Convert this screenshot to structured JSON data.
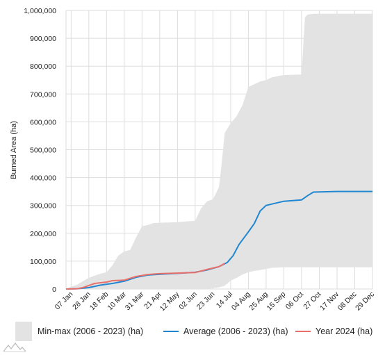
{
  "chart_data": {
    "type": "area",
    "xlabel": "",
    "ylabel": "Burned Area (ha)",
    "xlim": [
      "2024-01-01",
      "2024-12-29"
    ],
    "ylim": [
      0,
      1000000
    ],
    "grid": true,
    "legend_position": "bottom",
    "x_ticks": [
      "07 Jan",
      "28 Jan",
      "18 Feb",
      "10 Mar",
      "31 Mar",
      "21 Apr",
      "12 May",
      "02 Jun",
      "23 Jun",
      "14 Jul",
      "04 Aug",
      "25 Aug",
      "15 Sep",
      "06 Oct",
      "27 Oct",
      "17 Nov",
      "08 Dec",
      "29 Dec"
    ],
    "x_tick_dates": [
      "2024-01-07",
      "2024-01-28",
      "2024-02-18",
      "2024-03-10",
      "2024-03-31",
      "2024-04-21",
      "2024-05-12",
      "2024-06-02",
      "2024-06-23",
      "2024-07-14",
      "2024-08-04",
      "2024-08-25",
      "2024-09-15",
      "2024-10-06",
      "2024-10-27",
      "2024-11-17",
      "2024-12-08",
      "2024-12-29"
    ],
    "y_ticks": [
      0,
      100000,
      200000,
      300000,
      400000,
      500000,
      600000,
      700000,
      800000,
      900000,
      1000000
    ],
    "y_tick_labels": [
      "0",
      "100,000",
      "200,000",
      "300,000",
      "400,000",
      "500,000",
      "600,000",
      "700,000",
      "800,000",
      "900,000",
      "1,000,000"
    ],
    "series": [
      {
        "name": "Min-max (2006 - 2023) (ha)",
        "kind": "band",
        "color": "#e3e3e3",
        "x": [
          "2024-01-01",
          "2024-01-07",
          "2024-01-14",
          "2024-01-21",
          "2024-01-28",
          "2024-02-04",
          "2024-02-11",
          "2024-02-18",
          "2024-02-25",
          "2024-03-03",
          "2024-03-10",
          "2024-03-17",
          "2024-03-24",
          "2024-03-31",
          "2024-04-07",
          "2024-04-14",
          "2024-04-21",
          "2024-05-12",
          "2024-06-02",
          "2024-06-09",
          "2024-06-16",
          "2024-06-23",
          "2024-06-30",
          "2024-07-03",
          "2024-07-07",
          "2024-07-14",
          "2024-07-21",
          "2024-07-28",
          "2024-08-04",
          "2024-08-11",
          "2024-08-18",
          "2024-08-25",
          "2024-09-01",
          "2024-09-15",
          "2024-10-06",
          "2024-10-10",
          "2024-10-13",
          "2024-10-20",
          "2024-11-01",
          "2024-12-29"
        ],
        "max": [
          0,
          8000,
          15000,
          28000,
          40000,
          48000,
          55000,
          60000,
          85000,
          120000,
          135000,
          140000,
          185000,
          225000,
          230000,
          237000,
          238000,
          240000,
          245000,
          290000,
          315000,
          322000,
          365000,
          440000,
          560000,
          595000,
          620000,
          660000,
          725000,
          735000,
          745000,
          750000,
          760000,
          768000,
          770000,
          975000,
          985000,
          988000,
          988000,
          988000
        ],
        "min": [
          0,
          0,
          0,
          0,
          0,
          0,
          0,
          0,
          0,
          0,
          0,
          0,
          0,
          0,
          0,
          0,
          0,
          0,
          0,
          0,
          0,
          3000,
          6000,
          8000,
          12000,
          30000,
          40000,
          52000,
          60000,
          65000,
          68000,
          72000,
          76000,
          78000,
          78000,
          78000,
          78000,
          78000,
          78000,
          78000
        ]
      },
      {
        "name": "Average (2006 - 2023) (ha)",
        "kind": "line",
        "color": "#1f86d1",
        "x": [
          "2024-01-01",
          "2024-01-14",
          "2024-01-28",
          "2024-02-11",
          "2024-02-25",
          "2024-03-10",
          "2024-03-24",
          "2024-04-07",
          "2024-04-21",
          "2024-05-12",
          "2024-06-02",
          "2024-06-16",
          "2024-06-30",
          "2024-07-10",
          "2024-07-17",
          "2024-07-24",
          "2024-08-04",
          "2024-08-11",
          "2024-08-18",
          "2024-08-25",
          "2024-09-01",
          "2024-09-15",
          "2024-10-06",
          "2024-10-13",
          "2024-10-20",
          "2024-11-17",
          "2024-12-29"
        ],
        "values": [
          0,
          1000,
          5000,
          14000,
          20000,
          28000,
          42000,
          50000,
          53000,
          56000,
          60000,
          68000,
          80000,
          95000,
          120000,
          160000,
          205000,
          235000,
          280000,
          300000,
          305000,
          315000,
          320000,
          335000,
          348000,
          350000,
          350000
        ]
      },
      {
        "name": "Year 2024 (ha)",
        "kind": "line",
        "color": "#e8706a",
        "x": [
          "2024-01-01",
          "2024-01-14",
          "2024-01-21",
          "2024-02-04",
          "2024-02-18",
          "2024-02-25",
          "2024-03-10",
          "2024-03-24",
          "2024-04-07",
          "2024-04-21",
          "2024-05-12",
          "2024-06-02",
          "2024-06-16",
          "2024-06-30",
          "2024-07-07"
        ],
        "values": [
          0,
          1000,
          5000,
          20000,
          25000,
          30000,
          32000,
          45000,
          52000,
          55000,
          57000,
          59000,
          70000,
          80000,
          92000
        ]
      }
    ]
  }
}
